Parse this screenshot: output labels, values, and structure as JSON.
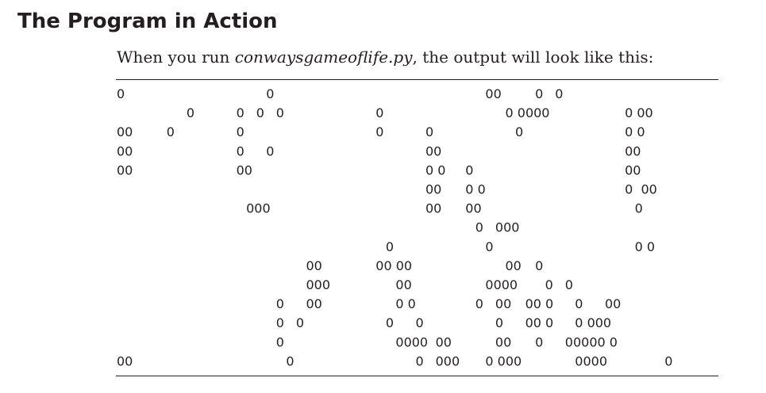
{
  "heading": "The Program in Action",
  "intro": {
    "before": "When you run ",
    "filename": "conwaysgameoflife.py",
    "after": ", the output will look like this:"
  },
  "output_cells": [
    {
      "text": "0",
      "row": 0,
      "col": 0
    },
    {
      "text": "0",
      "row": 0,
      "col": 15
    },
    {
      "text": "00",
      "row": 0,
      "col": 37
    },
    {
      "text": "0",
      "row": 0,
      "col": 42
    },
    {
      "text": "0",
      "row": 0,
      "col": 44
    },
    {
      "text": "0",
      "row": 1,
      "col": 7
    },
    {
      "text": "0",
      "row": 1,
      "col": 12
    },
    {
      "text": "0",
      "row": 1,
      "col": 14
    },
    {
      "text": "0",
      "row": 1,
      "col": 16
    },
    {
      "text": "0",
      "row": 1,
      "col": 26
    },
    {
      "text": "0 0000",
      "row": 1,
      "col": 39
    },
    {
      "text": "0 00",
      "row": 1,
      "col": 51
    },
    {
      "text": "00",
      "row": 2,
      "col": 0
    },
    {
      "text": "0",
      "row": 2,
      "col": 5
    },
    {
      "text": "0",
      "row": 2,
      "col": 12
    },
    {
      "text": "0",
      "row": 2,
      "col": 26
    },
    {
      "text": "0",
      "row": 2,
      "col": 31
    },
    {
      "text": "0",
      "row": 2,
      "col": 40
    },
    {
      "text": "0 0",
      "row": 2,
      "col": 51
    },
    {
      "text": "00",
      "row": 3,
      "col": 0
    },
    {
      "text": "0",
      "row": 3,
      "col": 12
    },
    {
      "text": "0",
      "row": 3,
      "col": 15
    },
    {
      "text": "00",
      "row": 3,
      "col": 31
    },
    {
      "text": "00",
      "row": 3,
      "col": 51
    },
    {
      "text": "00",
      "row": 4,
      "col": 0
    },
    {
      "text": "00",
      "row": 4,
      "col": 12
    },
    {
      "text": "0 0",
      "row": 4,
      "col": 31
    },
    {
      "text": "0",
      "row": 4,
      "col": 35
    },
    {
      "text": "00",
      "row": 4,
      "col": 51
    },
    {
      "text": "00",
      "row": 5,
      "col": 31
    },
    {
      "text": "0 0",
      "row": 5,
      "col": 35
    },
    {
      "text": "0  00",
      "row": 5,
      "col": 51
    },
    {
      "text": "000",
      "row": 6,
      "col": 13
    },
    {
      "text": "00",
      "row": 6,
      "col": 31
    },
    {
      "text": "00",
      "row": 6,
      "col": 35
    },
    {
      "text": "0",
      "row": 6,
      "col": 52
    },
    {
      "text": "0",
      "row": 7,
      "col": 36
    },
    {
      "text": "000",
      "row": 7,
      "col": 38
    },
    {
      "text": "0",
      "row": 8,
      "col": 27
    },
    {
      "text": "0",
      "row": 8,
      "col": 37
    },
    {
      "text": "0 0",
      "row": 8,
      "col": 52
    },
    {
      "text": "00",
      "row": 9,
      "col": 19
    },
    {
      "text": "00 00",
      "row": 9,
      "col": 26
    },
    {
      "text": "00",
      "row": 9,
      "col": 39
    },
    {
      "text": "0",
      "row": 9,
      "col": 42
    },
    {
      "text": "000",
      "row": 10,
      "col": 19
    },
    {
      "text": "00",
      "row": 10,
      "col": 28
    },
    {
      "text": "0000",
      "row": 10,
      "col": 37
    },
    {
      "text": "0",
      "row": 10,
      "col": 43
    },
    {
      "text": "0",
      "row": 10,
      "col": 45
    },
    {
      "text": "0",
      "row": 11,
      "col": 16
    },
    {
      "text": "00",
      "row": 11,
      "col": 19
    },
    {
      "text": "0 0",
      "row": 11,
      "col": 28
    },
    {
      "text": "0",
      "row": 11,
      "col": 36
    },
    {
      "text": "00",
      "row": 11,
      "col": 38
    },
    {
      "text": "00 0",
      "row": 11,
      "col": 41
    },
    {
      "text": "0",
      "row": 11,
      "col": 46
    },
    {
      "text": "00",
      "row": 11,
      "col": 49
    },
    {
      "text": "0",
      "row": 12,
      "col": 16
    },
    {
      "text": "0",
      "row": 12,
      "col": 18
    },
    {
      "text": "0",
      "row": 12,
      "col": 27
    },
    {
      "text": "0",
      "row": 12,
      "col": 30
    },
    {
      "text": "0",
      "row": 12,
      "col": 38
    },
    {
      "text": "00 0",
      "row": 12,
      "col": 41
    },
    {
      "text": "0 000",
      "row": 12,
      "col": 46
    },
    {
      "text": "0",
      "row": 13,
      "col": 16
    },
    {
      "text": "0000",
      "row": 13,
      "col": 28
    },
    {
      "text": "00",
      "row": 13,
      "col": 32
    },
    {
      "text": "00",
      "row": 13,
      "col": 38
    },
    {
      "text": "0",
      "row": 13,
      "col": 42
    },
    {
      "text": "00000 0",
      "row": 13,
      "col": 45
    },
    {
      "text": "00",
      "row": 14,
      "col": 0
    },
    {
      "text": "0",
      "row": 14,
      "col": 17
    },
    {
      "text": "0",
      "row": 14,
      "col": 30
    },
    {
      "text": "000",
      "row": 14,
      "col": 32
    },
    {
      "text": "0 000",
      "row": 14,
      "col": 37
    },
    {
      "text": "0000",
      "row": 14,
      "col": 46
    },
    {
      "text": "0",
      "row": 14,
      "col": 55
    }
  ]
}
